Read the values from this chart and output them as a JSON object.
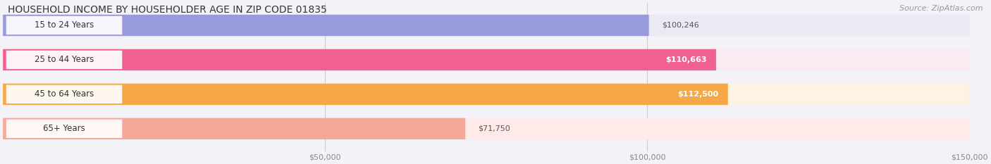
{
  "title": "HOUSEHOLD INCOME BY HOUSEHOLDER AGE IN ZIP CODE 01835",
  "source": "Source: ZipAtlas.com",
  "categories": [
    "15 to 24 Years",
    "25 to 44 Years",
    "45 to 64 Years",
    "65+ Years"
  ],
  "values": [
    100246,
    110663,
    112500,
    71750
  ],
  "bar_colors": [
    "#9999DD",
    "#F06090",
    "#F5A845",
    "#F5A898"
  ],
  "bar_bg_colors": [
    "#EAEAF5",
    "#FCEAF2",
    "#FEF2E4",
    "#FEEAE8"
  ],
  "label_inside": [
    false,
    true,
    true,
    false
  ],
  "label_texts": [
    "$100,246",
    "$110,663",
    "$112,500",
    "$71,750"
  ],
  "xlim_max": 150000,
  "xticks": [
    50000,
    100000,
    150000
  ],
  "xtick_labels": [
    "$50,000",
    "$100,000",
    "$150,000"
  ],
  "background_color": "#F2F2F7",
  "title_fontsize": 10,
  "source_fontsize": 8
}
